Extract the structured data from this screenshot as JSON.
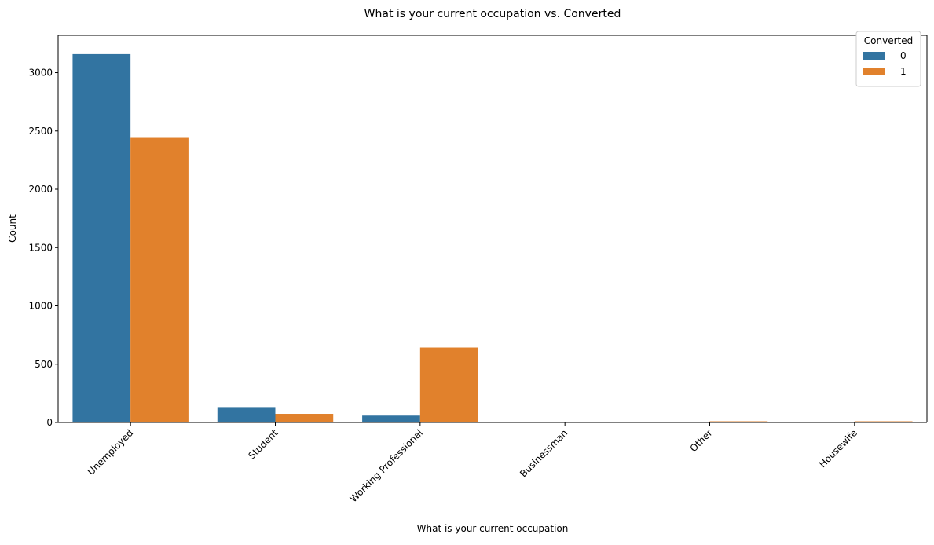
{
  "chart_data": {
    "type": "bar",
    "title": "What is your current occupation vs. Converted",
    "xlabel": "What is your current occupation",
    "ylabel": "Count",
    "ylim": [
      0,
      3320
    ],
    "yticks": [
      0,
      500,
      1000,
      1500,
      2000,
      2500,
      3000
    ],
    "categories": [
      "Unemployed",
      "Student",
      "Working Professional",
      "Businessman",
      "Other",
      "Housewife"
    ],
    "legend": {
      "title": "Converted",
      "position": "top-right"
    },
    "grid": false,
    "series": [
      {
        "name": "0",
        "color": "#3274a1",
        "values": [
          3159,
          132,
          59,
          0,
          3,
          0
        ]
      },
      {
        "name": "1",
        "color": "#e1812c",
        "values": [
          2441,
          74,
          643,
          0,
          10,
          10
        ]
      }
    ]
  }
}
